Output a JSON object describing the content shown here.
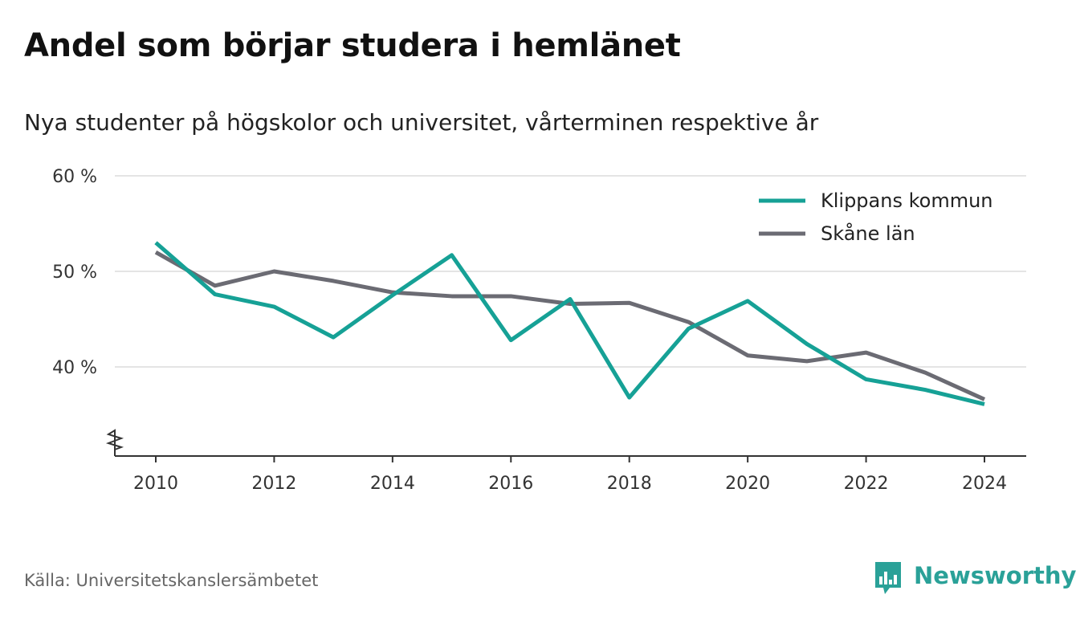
{
  "title": "Andel som börjar studera i hemlänet",
  "subtitle": "Nya studenter på högskolor och universitet, vårterminen respektive år",
  "source": "Källa: Universitetskanslersämbetet",
  "brand": "Newsworthy",
  "colors": {
    "klippan": "#16a196",
    "skane": "#6b6b73",
    "grid": "#dcdcdc",
    "axis": "#333333",
    "brand": "#2aa198"
  },
  "chart_data": {
    "type": "line",
    "title": "Andel som börjar studera i hemlänet",
    "x": [
      2010,
      2011,
      2012,
      2013,
      2014,
      2015,
      2016,
      2017,
      2018,
      2019,
      2020,
      2021,
      2022,
      2023,
      2024
    ],
    "x_ticks": [
      "2010",
      "2012",
      "2014",
      "2016",
      "2018",
      "2020",
      "2022",
      "2024"
    ],
    "y_ticks": [
      "40 %",
      "50 %",
      "60 %"
    ],
    "ylim": [
      31,
      60
    ],
    "grid": true,
    "axis_break": true,
    "legend_position": "top-right",
    "series": [
      {
        "name": "Klippans kommun",
        "color": "#16a196",
        "values": [
          53.0,
          47.6,
          46.3,
          43.1,
          47.5,
          51.7,
          42.8,
          47.1,
          36.8,
          44.0,
          46.9,
          42.4,
          38.7,
          37.6,
          36.1
        ]
      },
      {
        "name": "Skåne län",
        "color": "#6b6b73",
        "values": [
          52.0,
          48.5,
          50.0,
          49.0,
          47.8,
          47.4,
          47.4,
          46.6,
          46.7,
          44.7,
          41.2,
          40.6,
          41.5,
          39.4,
          36.6
        ]
      }
    ]
  }
}
